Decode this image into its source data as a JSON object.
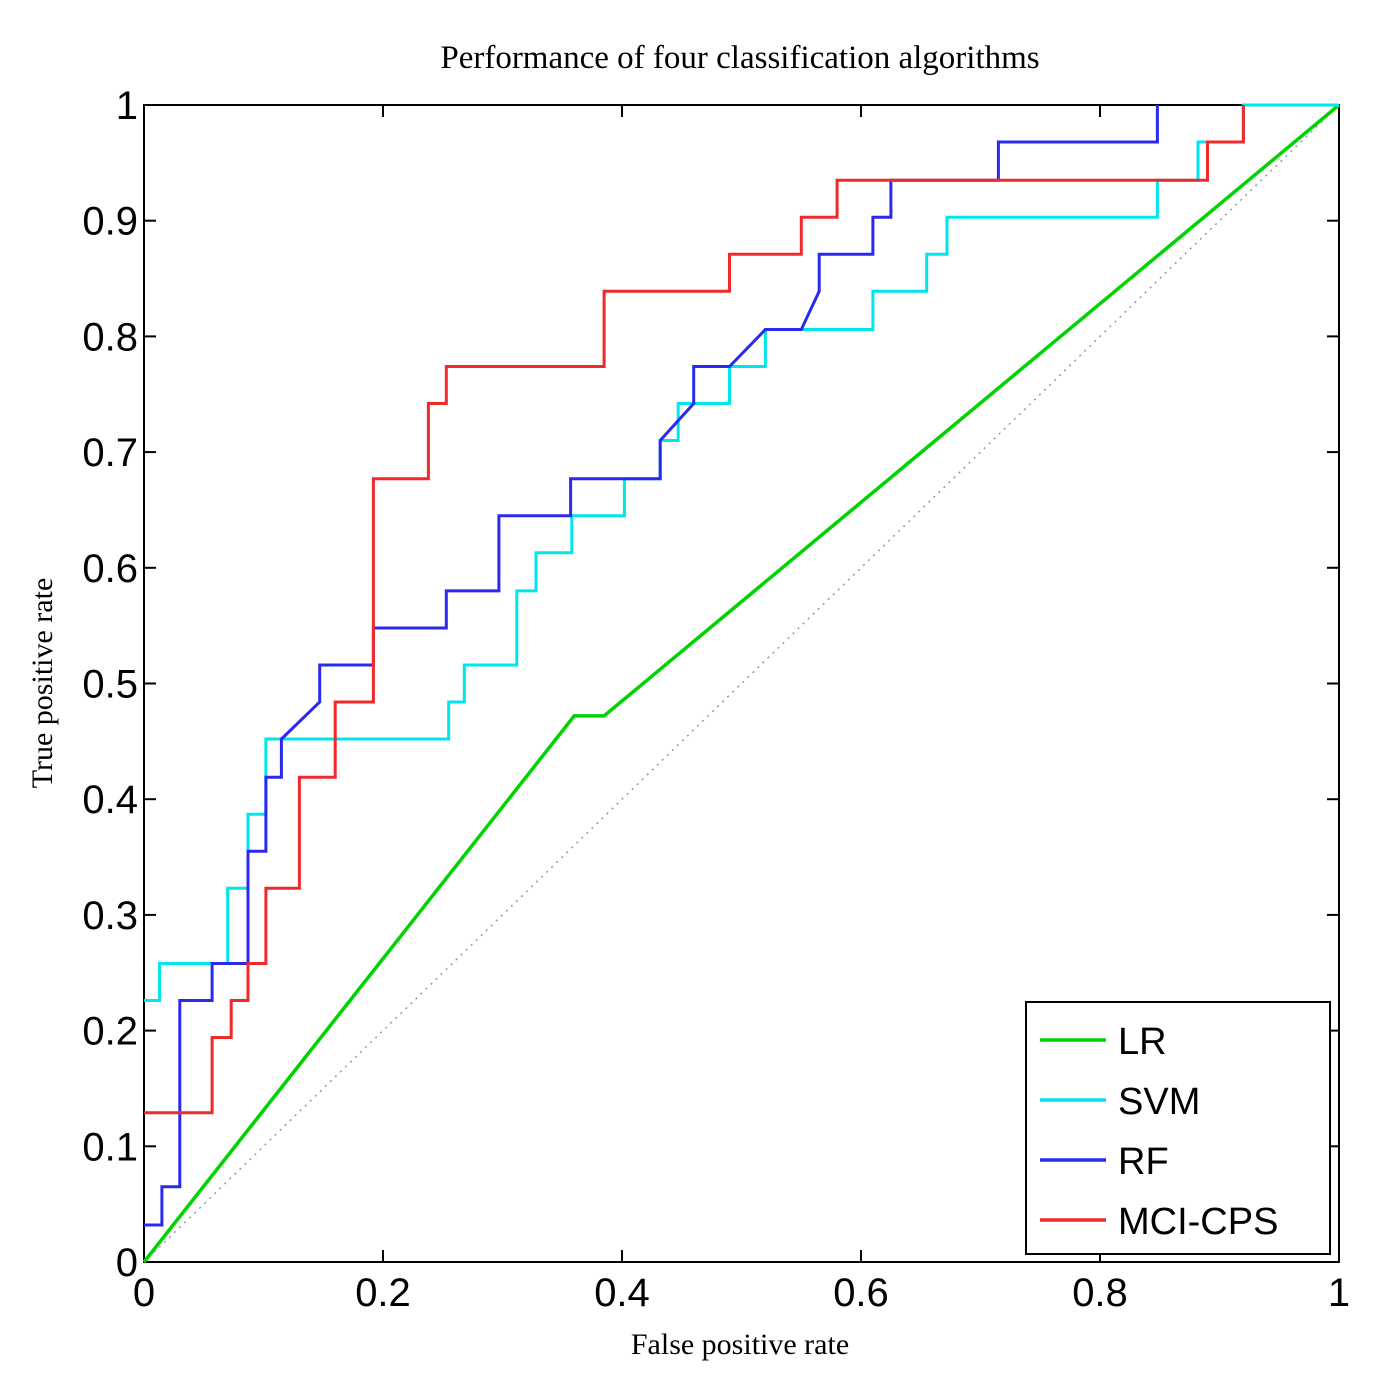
{
  "chart_data": {
    "type": "line",
    "title": "Performance of four classification algorithms",
    "xlabel": "False positive rate",
    "ylabel": "True positive rate",
    "xlim": [
      0,
      1
    ],
    "ylim": [
      0,
      1
    ],
    "x_ticks": [
      0,
      0.2,
      0.4,
      0.6,
      0.8,
      1
    ],
    "x_tick_labels": [
      "0",
      "0.2",
      "0.4",
      "0.6",
      "0.8",
      "1"
    ],
    "y_ticks": [
      0,
      0.1,
      0.2,
      0.3,
      0.4,
      0.5,
      0.6,
      0.7,
      0.8,
      0.9,
      1
    ],
    "y_tick_labels": [
      "0",
      "0.1",
      "0.2",
      "0.3",
      "0.4",
      "0.5",
      "0.6",
      "0.7",
      "0.8",
      "0.9",
      "1"
    ],
    "grid": false,
    "legend_position": "bottom-right",
    "reference_line": {
      "name": "chance",
      "x": [
        0,
        1
      ],
      "y": [
        0,
        1
      ],
      "style": "dotted",
      "color": "#999999"
    },
    "series": [
      {
        "name": "LR",
        "color": "#00d400",
        "x": [
          0,
          0.36,
          0.385,
          1
        ],
        "y": [
          0,
          0.472,
          0.472,
          1
        ]
      },
      {
        "name": "SVM",
        "color": "#00e5ee",
        "x": [
          0,
          0.013,
          0.013,
          0.07,
          0.07,
          0.087,
          0.087,
          0.102,
          0.102,
          0.255,
          0.255,
          0.268,
          0.268,
          0.312,
          0.312,
          0.328,
          0.328,
          0.358,
          0.358,
          0.402,
          0.402,
          0.432,
          0.432,
          0.447,
          0.447,
          0.49,
          0.49,
          0.52,
          0.52,
          0.61,
          0.61,
          0.655,
          0.655,
          0.672,
          0.672,
          0.848,
          0.848,
          0.882,
          0.882,
          0.92,
          0.92,
          1
        ],
        "y": [
          0.226,
          0.226,
          0.258,
          0.258,
          0.323,
          0.323,
          0.387,
          0.387,
          0.452,
          0.452,
          0.484,
          0.484,
          0.516,
          0.516,
          0.58,
          0.58,
          0.613,
          0.613,
          0.645,
          0.645,
          0.677,
          0.677,
          0.71,
          0.71,
          0.742,
          0.742,
          0.774,
          0.774,
          0.806,
          0.806,
          0.839,
          0.839,
          0.871,
          0.871,
          0.903,
          0.903,
          0.935,
          0.935,
          0.968,
          0.968,
          1,
          1
        ]
      },
      {
        "name": "RF",
        "color": "#2a2aee",
        "x": [
          0,
          0.015,
          0.015,
          0.03,
          0.03,
          0.057,
          0.057,
          0.087,
          0.087,
          0.102,
          0.102,
          0.115,
          0.115,
          0.147,
          0.147,
          0.192,
          0.192,
          0.253,
          0.253,
          0.297,
          0.297,
          0.357,
          0.357,
          0.432,
          0.432,
          0.46,
          0.46,
          0.49,
          0.49,
          0.52,
          0.52,
          0.55,
          0.55,
          0.565,
          0.565,
          0.61,
          0.61,
          0.625,
          0.625,
          0.715,
          0.715,
          0.848,
          0.848
        ],
        "y": [
          0.032,
          0.032,
          0.065,
          0.065,
          0.226,
          0.226,
          0.258,
          0.258,
          0.355,
          0.355,
          0.419,
          0.419,
          0.452,
          0.484,
          0.516,
          0.516,
          0.548,
          0.548,
          0.58,
          0.58,
          0.645,
          0.645,
          0.677,
          0.677,
          0.71,
          0.742,
          0.774,
          0.774,
          0.774,
          0.806,
          0.806,
          0.806,
          0.806,
          0.839,
          0.871,
          0.871,
          0.903,
          0.903,
          0.935,
          0.935,
          0.968,
          0.968,
          1
        ]
      },
      {
        "name": "MCI-CPS",
        "color": "#ee2a2a",
        "x": [
          0,
          0.057,
          0.057,
          0.073,
          0.073,
          0.087,
          0.087,
          0.102,
          0.102,
          0.13,
          0.13,
          0.16,
          0.16,
          0.192,
          0.192,
          0.238,
          0.238,
          0.253,
          0.253,
          0.385,
          0.385,
          0.49,
          0.49,
          0.55,
          0.55,
          0.58,
          0.58,
          0.89,
          0.89,
          0.92,
          0.92
        ],
        "y": [
          0.129,
          0.129,
          0.194,
          0.194,
          0.226,
          0.226,
          0.258,
          0.258,
          0.323,
          0.323,
          0.419,
          0.419,
          0.484,
          0.484,
          0.677,
          0.677,
          0.742,
          0.742,
          0.774,
          0.774,
          0.839,
          0.839,
          0.871,
          0.871,
          0.903,
          0.903,
          0.935,
          0.935,
          0.968,
          0.968,
          1
        ]
      }
    ]
  }
}
